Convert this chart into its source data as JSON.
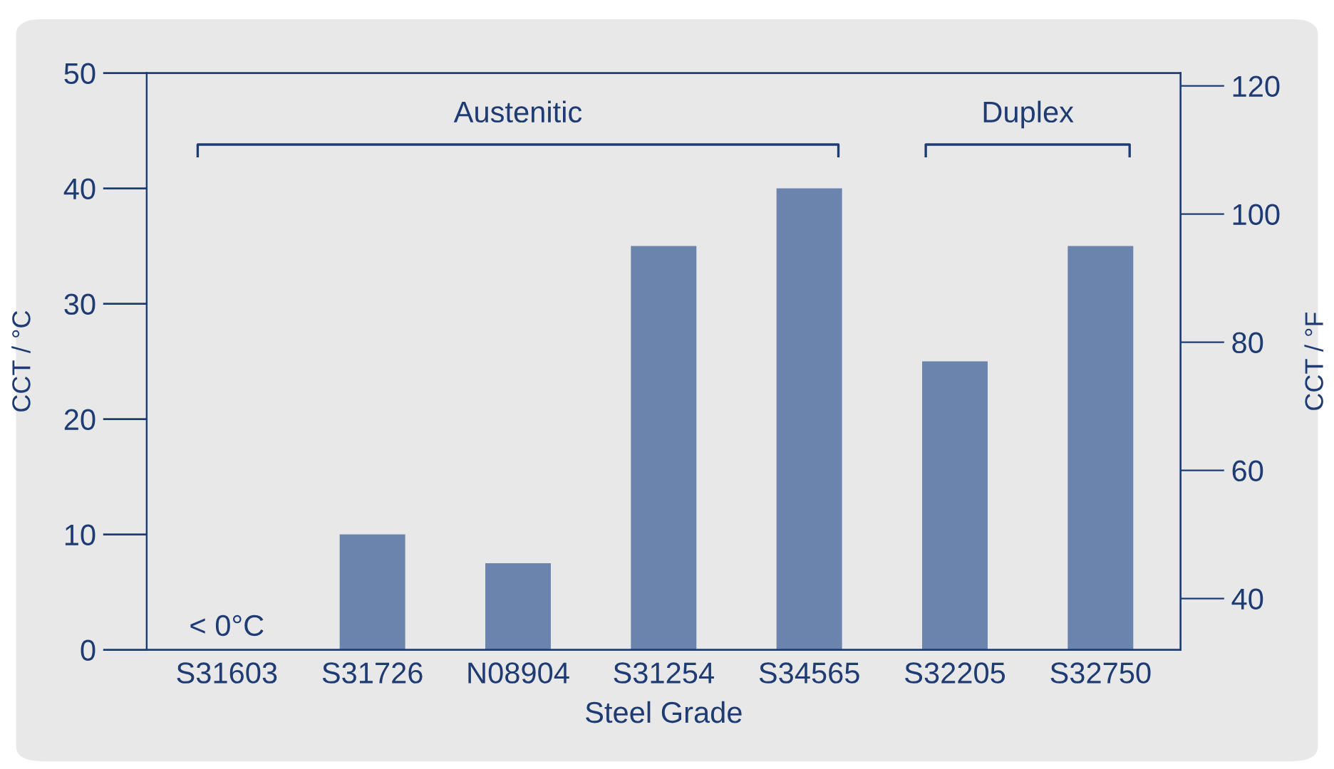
{
  "chart_data": {
    "type": "bar",
    "xlabel": "Steel Grade",
    "ylabel": "CCT / °C",
    "y2label": "CCT / °F",
    "categories": [
      "S31603",
      "S31726",
      "N08904",
      "S31254",
      "S34565",
      "S32205",
      "S32750"
    ],
    "values": [
      null,
      10,
      7.5,
      35,
      40,
      25,
      35
    ],
    "color": "#6b84ad",
    "ylim": [
      0,
      50
    ],
    "yticks": [
      0,
      10,
      20,
      30,
      40,
      50
    ],
    "y2lim": [
      32,
      122
    ],
    "y2ticks": [
      40,
      60,
      80,
      100,
      120
    ],
    "grid": false,
    "legend": false,
    "annotations": [
      "< 0°C",
      "Austenitic",
      "Duplex"
    ]
  }
}
